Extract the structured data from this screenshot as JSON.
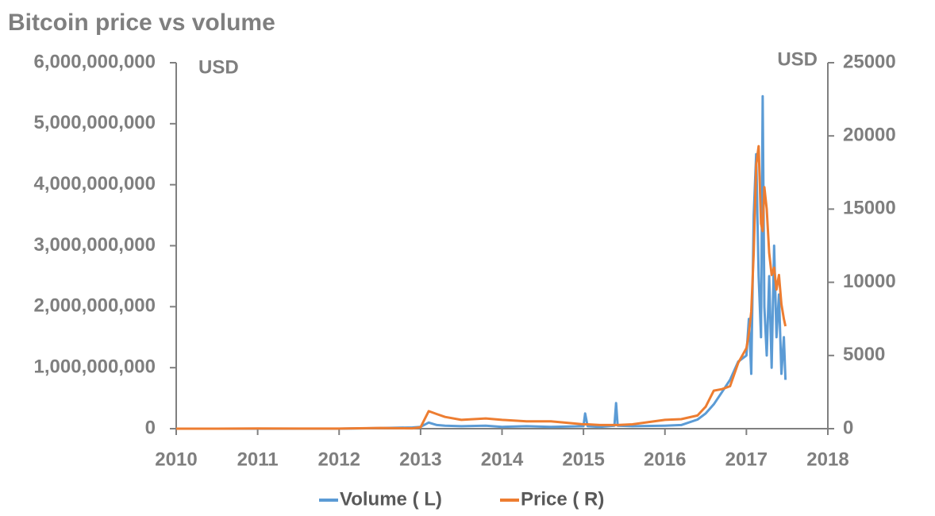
{
  "chart_data": {
    "type": "line",
    "title": "Bitcoin price vs volume",
    "ylabel": "USD",
    "y2label": "USD",
    "x": [
      2010,
      2010.5,
      2011,
      2011.5,
      2012,
      2012.5,
      2012.9,
      2013.0,
      2013.1,
      2013.2,
      2013.3,
      2013.5,
      2013.8,
      2014,
      2014.3,
      2014.6,
      2015,
      2015.02,
      2015.05,
      2015.2,
      2015.38,
      2015.4,
      2015.42,
      2015.6,
      2016,
      2016.2,
      2016.4,
      2016.5,
      2016.6,
      2016.7,
      2016.8,
      2016.9,
      2017.0,
      2017.03,
      2017.06,
      2017.09,
      2017.12,
      2017.15,
      2017.18,
      2017.2,
      2017.22,
      2017.25,
      2017.28,
      2017.31,
      2017.34,
      2017.37,
      2017.4,
      2017.43,
      2017.46,
      2017.48
    ],
    "series": [
      {
        "name": "Volume ( L)",
        "color": "#5b9bd5",
        "axis": "y",
        "values": [
          0,
          0,
          0,
          0,
          0,
          10000000,
          20000000,
          30000000,
          100000000,
          60000000,
          50000000,
          40000000,
          50000000,
          30000000,
          40000000,
          30000000,
          40000000,
          250000000,
          40000000,
          30000000,
          50000000,
          420000000,
          50000000,
          40000000,
          50000000,
          60000000,
          150000000,
          250000000,
          400000000,
          600000000,
          800000000,
          1100000000,
          1200000000,
          1800000000,
          900000000,
          3500000000,
          4500000000,
          2500000000,
          1500000000,
          5450000000,
          2000000000,
          1200000000,
          2500000000,
          1000000000,
          3000000000,
          1500000000,
          2200000000,
          900000000,
          1500000000,
          800000000
        ]
      },
      {
        "name": "Price ( R)",
        "color": "#ed7d31",
        "axis": "y2",
        "values": [
          0,
          0,
          10,
          5,
          5,
          50,
          20,
          100,
          1200,
          1000,
          800,
          600,
          700,
          600,
          500,
          500,
          300,
          300,
          300,
          250,
          250,
          250,
          250,
          300,
          600,
          650,
          900,
          1500,
          2600,
          2700,
          2900,
          4500,
          5500,
          6500,
          8000,
          12000,
          18000,
          19300,
          14000,
          13500,
          16500,
          15000,
          12000,
          10500,
          11000,
          9500,
          10500,
          8500,
          7500,
          7000
        ]
      }
    ],
    "xlim": [
      2010,
      2018
    ],
    "xticks": [
      2010,
      2011,
      2012,
      2013,
      2014,
      2015,
      2016,
      2017,
      2018
    ],
    "ylim": [
      0,
      6000000000
    ],
    "yticks": [
      0,
      {
        "value": 1000000000,
        "label": "1,000,000,000"
      },
      {
        "value": 2000000000,
        "label": "2,000,000,000"
      },
      {
        "value": 3000000000,
        "label": "3,000,000,000"
      },
      {
        "value": 4000000000,
        "label": "4,000,000,000"
      },
      {
        "value": 5000000000,
        "label": "5,000,000,000"
      },
      {
        "value": 6000000000,
        "label": "6,000,000,000"
      }
    ],
    "y2lim": [
      0,
      25000
    ],
    "y2ticks": [
      0,
      5000,
      10000,
      15000,
      20000,
      25000
    ],
    "grid": false,
    "legend": "bottom"
  }
}
